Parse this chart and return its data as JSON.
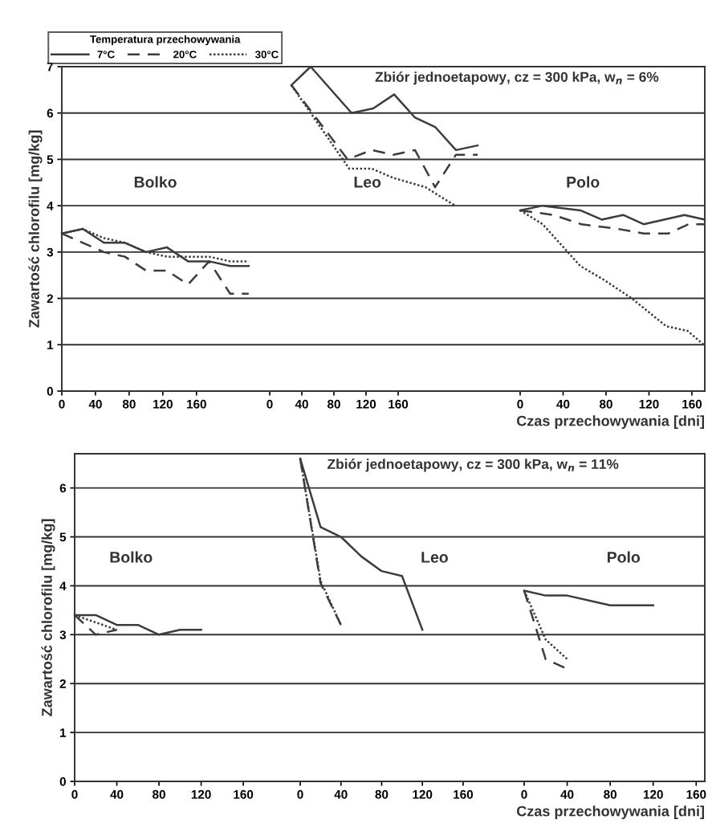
{
  "chart_data": [
    {
      "type": "line",
      "ylabel": "Zawartość chlorofilu [mg/kg]",
      "legend": "top left",
      "legend_title": "Temperatura przechowywania",
      "annotations": [
        "Bolko"
      ],
      "xlim": [
        0,
        247
      ],
      "xticks": [
        0,
        40,
        80,
        120,
        160
      ],
      "ylim": [
        0,
        7
      ],
      "yticks": [
        0,
        1,
        2,
        3,
        4,
        5,
        6,
        7
      ],
      "grid": "y",
      "series": [
        {
          "name": "7°C",
          "color": "#3c3c3c",
          "line_style": "solid",
          "x": [
            0,
            25,
            50,
            75,
            100,
            125,
            150,
            175,
            200,
            222
          ],
          "values": [
            3.4,
            3.5,
            3.2,
            3.2,
            3.0,
            3.1,
            2.8,
            2.8,
            2.7,
            2.7
          ]
        },
        {
          "name": "20°C",
          "color": "#3c3c3c",
          "line_style": "dashed",
          "x": [
            0,
            25,
            50,
            75,
            100,
            125,
            150,
            175,
            200,
            222
          ],
          "values": [
            3.4,
            3.2,
            3.0,
            2.9,
            2.6,
            2.6,
            2.3,
            2.8,
            2.1,
            2.1
          ]
        },
        {
          "name": "30°C",
          "color": "#3c3c3c",
          "line_style": "dotted",
          "x": [
            0,
            25,
            50,
            75,
            100,
            125,
            150,
            175,
            200,
            222
          ],
          "values": [
            3.4,
            3.5,
            3.3,
            3.2,
            3.0,
            2.9,
            2.9,
            2.9,
            2.8,
            2.8
          ]
        }
      ]
    },
    {
      "type": "line",
      "title": "Zbiór jednoetapowy, cz = 300 kPa, w$_{n}$ = 6%",
      "annotations": [
        "Leo"
      ],
      "xlim": [
        0,
        312
      ],
      "xticks": [
        0,
        40,
        80,
        120,
        160
      ],
      "ylim": [
        0,
        7
      ],
      "yticks": [
        0,
        1,
        2,
        3,
        4,
        5,
        6,
        7
      ],
      "grid": "y",
      "tick_labels": "x",
      "series": [
        {
          "color": "#3c3c3c",
          "line_style": "solid",
          "x": [
            27,
            51,
            102,
            129,
            155,
            181,
            206,
            232,
            259
          ],
          "values": [
            6.6,
            7.0,
            6.0,
            6.1,
            6.4,
            5.9,
            5.7,
            5.2,
            5.3
          ]
        },
        {
          "color": "#3c3c3c",
          "line_style": "dashed",
          "x": [
            27,
            97,
            127,
            154,
            181,
            206,
            232,
            259
          ],
          "values": [
            6.6,
            5.0,
            5.2,
            5.1,
            5.2,
            4.4,
            5.1,
            5.1
          ]
        },
        {
          "color": "#3c3c3c",
          "line_style": "dotted",
          "x": [
            27,
            99,
            127,
            154,
            194,
            231
          ],
          "values": [
            6.6,
            4.8,
            4.8,
            4.6,
            4.4,
            4.0
          ]
        }
      ]
    },
    {
      "type": "line",
      "xlabel": "Czas przechowywania [dni]",
      "annotations": [
        "Polo"
      ],
      "xlim": [
        0,
        172
      ],
      "xticks": [
        0,
        40,
        80,
        120,
        160
      ],
      "ylim": [
        0,
        7
      ],
      "yticks": [
        0,
        1,
        2,
        3,
        4,
        5,
        6,
        7
      ],
      "grid": "y",
      "tick_labels": "x",
      "series": [
        {
          "color": "#3c3c3c",
          "line_style": "solid",
          "x": [
            0,
            21,
            56,
            76,
            96,
            115,
            153,
            172
          ],
          "values": [
            3.9,
            4.0,
            3.9,
            3.7,
            3.8,
            3.6,
            3.8,
            3.7
          ]
        },
        {
          "color": "#3c3c3c",
          "line_style": "dashed",
          "x": [
            0,
            31,
            57,
            91,
            115,
            138,
            157,
            172
          ],
          "values": [
            3.9,
            3.8,
            3.6,
            3.5,
            3.4,
            3.4,
            3.6,
            3.6
          ]
        },
        {
          "color": "#3c3c3c",
          "line_style": "dotted",
          "x": [
            0,
            21,
            56,
            78,
            104,
            136,
            156,
            171
          ],
          "values": [
            3.9,
            3.6,
            2.7,
            2.4,
            2.0,
            1.4,
            1.3,
            1.0
          ]
        }
      ]
    },
    {
      "type": "line",
      "ylabel": "Zawartość chlorofilu [mg/kg]",
      "annotations": [
        "Bolko"
      ],
      "xlim": [
        0,
        214
      ],
      "xticks": [
        0,
        40,
        80,
        120,
        160
      ],
      "ylim": [
        0,
        6.7
      ],
      "yticks": [
        0,
        1,
        2,
        3,
        4,
        5,
        6
      ],
      "grid": "y",
      "series": [
        {
          "color": "#3c3c3c",
          "line_style": "solid",
          "x": [
            0,
            20,
            40,
            60,
            80,
            100,
            120
          ],
          "values": [
            3.4,
            3.4,
            3.2,
            3.2,
            3.0,
            3.1,
            3.1
          ]
        },
        {
          "color": "#3c3c3c",
          "line_style": "dashed",
          "x": [
            0,
            20,
            40
          ],
          "values": [
            3.4,
            3.0,
            3.1
          ]
        },
        {
          "color": "#3c3c3c",
          "line_style": "dotted",
          "x": [
            0,
            20,
            40
          ],
          "values": [
            3.4,
            3.25,
            3.1
          ]
        }
      ]
    },
    {
      "type": "line",
      "title": "Zbiór jednoetapowy, cz = 300 kPa, w$_{n}$ = 11%",
      "annotations": [
        "Leo"
      ],
      "xlim": [
        0,
        220
      ],
      "xticks": [
        0,
        40,
        80,
        120,
        160
      ],
      "ylim": [
        0,
        6.7
      ],
      "yticks": [
        0,
        1,
        2,
        3,
        4,
        5,
        6
      ],
      "grid": "y",
      "tick_labels": "x",
      "series": [
        {
          "color": "#3c3c3c",
          "line_style": "solid",
          "x": [
            0,
            20,
            40,
            60,
            80,
            100,
            120
          ],
          "values": [
            6.6,
            5.2,
            5.0,
            4.6,
            4.3,
            4.2,
            3.1
          ]
        },
        {
          "color": "#3c3c3c",
          "line_style": "dashed",
          "x": [
            0,
            20,
            40
          ],
          "values": [
            6.6,
            4.05,
            3.2
          ]
        },
        {
          "color": "#3c3c3c",
          "line_style": "dotted",
          "x": [
            0,
            20,
            40
          ],
          "values": [
            6.6,
            4.1,
            3.2
          ]
        }
      ]
    },
    {
      "type": "line",
      "xlabel": "Czas przechowywania [dni]",
      "annotations": [
        "Polo"
      ],
      "xlim": [
        0,
        168
      ],
      "xticks": [
        0,
        40,
        80,
        120,
        160
      ],
      "ylim": [
        0,
        6.7
      ],
      "yticks": [
        0,
        1,
        2,
        3,
        4,
        5,
        6
      ],
      "grid": "y",
      "tick_labels": "x",
      "series": [
        {
          "color": "#3c3c3c",
          "line_style": "solid",
          "x": [
            0,
            20,
            40,
            80,
            120
          ],
          "values": [
            3.9,
            3.8,
            3.8,
            3.6,
            3.6
          ]
        },
        {
          "color": "#3c3c3c",
          "line_style": "dashed",
          "x": [
            0,
            20,
            40
          ],
          "values": [
            3.9,
            2.5,
            2.3
          ]
        },
        {
          "color": "#3c3c3c",
          "line_style": "dotted",
          "x": [
            0,
            20,
            40
          ],
          "values": [
            3.9,
            2.9,
            2.5
          ]
        }
      ]
    }
  ]
}
